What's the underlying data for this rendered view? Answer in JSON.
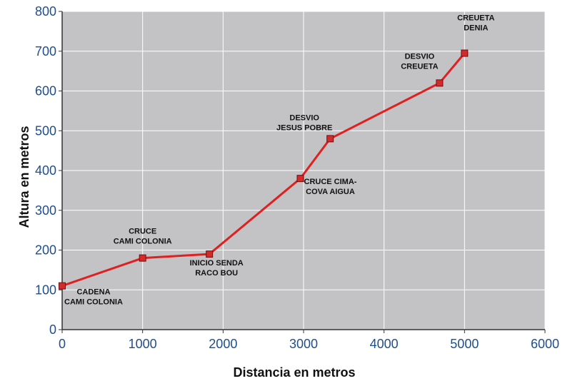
{
  "chart_data": {
    "type": "line",
    "title": "",
    "xlabel": "Distancia en metros",
    "ylabel": "Altura en metros",
    "xlim": [
      0,
      6000
    ],
    "ylim": [
      0,
      800
    ],
    "x_ticks": [
      "0",
      "1000",
      "2000",
      "3000",
      "4000",
      "5000",
      "6000"
    ],
    "y_ticks": [
      "0",
      "100",
      "200",
      "300",
      "400",
      "500",
      "600",
      "700",
      "800"
    ],
    "grid": true,
    "colors": {
      "plot_background": "#c3c3c5",
      "line": "#e02020",
      "marker_fill": "#d42a2a",
      "marker_stroke": "#6e1010",
      "tick_text": "#1f4e8c",
      "grid": "#ffffff"
    },
    "series": [
      {
        "points": [
          {
            "x": 0,
            "y": 110,
            "label": [
              "CADENA",
              "CAMI COLONIA"
            ]
          },
          {
            "x": 1000,
            "y": 180,
            "label": [
              "CRUCE",
              "CAMI COLONIA"
            ]
          },
          {
            "x": 1830,
            "y": 190,
            "label": [
              "INICIO SENDA",
              "RACO BOU"
            ]
          },
          {
            "x": 2960,
            "y": 380,
            "label": [
              "CRUCE CIMA-",
              "COVA AIGUA"
            ]
          },
          {
            "x": 3330,
            "y": 480,
            "label": [
              "DESVIO",
              "JESUS POBRE"
            ]
          },
          {
            "x": 4690,
            "y": 620,
            "label": [
              "DESVIO",
              "CREUETA"
            ]
          },
          {
            "x": 5000,
            "y": 695,
            "label": [
              "CREUETA",
              "DENIA"
            ]
          }
        ]
      }
    ]
  }
}
